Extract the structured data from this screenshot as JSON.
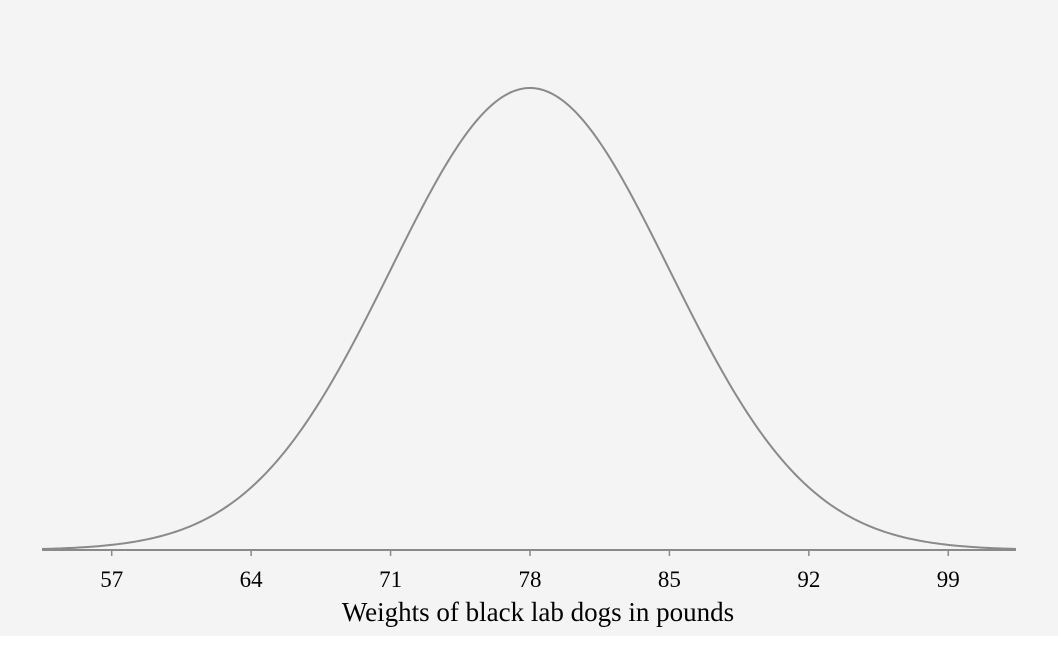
{
  "chart_data": {
    "type": "normal",
    "x_label": "Weights of black lab dogs in pounds",
    "mean": 78,
    "sd": 7,
    "color": "#8a8a8a",
    "xlim": [
      53.5,
      102.4
    ],
    "xticks": [
      57,
      64,
      71,
      78,
      85,
      92,
      99
    ]
  }
}
